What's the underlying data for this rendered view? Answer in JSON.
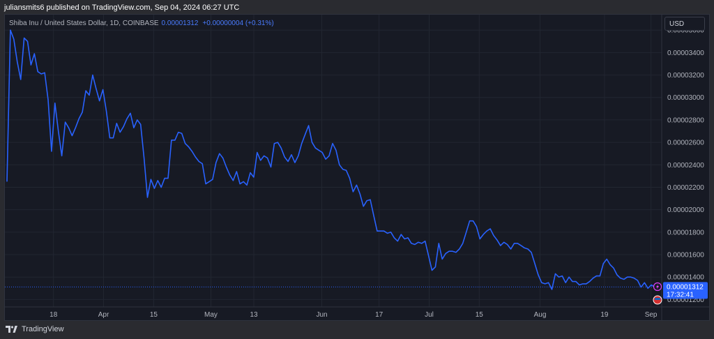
{
  "header": {
    "publisher": "juliansmits6 published on TradingView.com, Sep 04, 2024 06:27 UTC"
  },
  "legend": {
    "symbol": "Shiba Inu / United States Dollar, 1D, COINBASE",
    "price": "0.00001312",
    "change": "+0.00000004 (+0.31%)"
  },
  "currency_button": "USD",
  "price_badge": {
    "price": "0.00001312",
    "countdown": "17:32:41"
  },
  "footer": {
    "brand": "TradingView"
  },
  "colors": {
    "line": "#2962ff",
    "background": "#171a24",
    "grid": "#222631",
    "badge": "#2962ff"
  },
  "chart_data": {
    "type": "line",
    "x_start": "2024-03-05",
    "x_end": "2024-09-04",
    "x_tick_labels": [
      {
        "label": "18",
        "date": "2024-03-18"
      },
      {
        "label": "Apr",
        "date": "2024-04-01"
      },
      {
        "label": "15",
        "date": "2024-04-15"
      },
      {
        "label": "May",
        "date": "2024-05-01"
      },
      {
        "label": "13",
        "date": "2024-05-13"
      },
      {
        "label": "Jun",
        "date": "2024-06-01"
      },
      {
        "label": "17",
        "date": "2024-06-17"
      },
      {
        "label": "Jul",
        "date": "2024-07-01"
      },
      {
        "label": "15",
        "date": "2024-07-15"
      },
      {
        "label": "Aug",
        "date": "2024-08-01"
      },
      {
        "label": "19",
        "date": "2024-08-19"
      },
      {
        "label": "Sep",
        "date": "2024-09-01"
      }
    ],
    "y_ticks": [
      "0.00001200",
      "0.00001400",
      "0.00001600",
      "0.00001800",
      "0.00002000",
      "0.00002200",
      "0.00002400",
      "0.00002600",
      "0.00002800",
      "0.00003000",
      "0.00003200",
      "0.00003400",
      "0.00003600"
    ],
    "ylim": [
      1.134e-05,
      3.738e-05
    ],
    "y_unit": 1e-08,
    "values": [
      2250,
      3600,
      3520,
      3320,
      3160,
      3530,
      3500,
      3290,
      3390,
      3230,
      3210,
      3220,
      2980,
      2520,
      2950,
      2700,
      2480,
      2780,
      2730,
      2660,
      2730,
      2810,
      2870,
      3060,
      3020,
      3200,
      3080,
      2970,
      3070,
      2880,
      2640,
      2640,
      2770,
      2690,
      2740,
      2810,
      2860,
      2730,
      2800,
      2760,
      2460,
      2110,
      2270,
      2190,
      2260,
      2200,
      2280,
      2280,
      2620,
      2620,
      2690,
      2680,
      2590,
      2560,
      2520,
      2470,
      2430,
      2410,
      2230,
      2250,
      2270,
      2420,
      2500,
      2460,
      2380,
      2310,
      2260,
      2340,
      2230,
      2250,
      2220,
      2330,
      2290,
      2510,
      2440,
      2480,
      2460,
      2380,
      2590,
      2600,
      2550,
      2470,
      2430,
      2490,
      2420,
      2480,
      2590,
      2670,
      2750,
      2600,
      2550,
      2530,
      2510,
      2450,
      2480,
      2590,
      2530,
      2400,
      2360,
      2350,
      2280,
      2160,
      2220,
      2140,
      2030,
      2080,
      2090,
      1950,
      1810,
      1810,
      1810,
      1790,
      1800,
      1750,
      1720,
      1780,
      1740,
      1750,
      1700,
      1690,
      1710,
      1700,
      1720,
      1590,
      1460,
      1490,
      1700,
      1560,
      1610,
      1630,
      1630,
      1620,
      1650,
      1700,
      1800,
      1900,
      1900,
      1850,
      1740,
      1780,
      1810,
      1830,
      1770,
      1730,
      1680,
      1710,
      1690,
      1650,
      1700,
      1700,
      1680,
      1660,
      1650,
      1620,
      1520,
      1420,
      1350,
      1340,
      1350,
      1290,
      1430,
      1400,
      1410,
      1350,
      1400,
      1360,
      1360,
      1330,
      1340,
      1340,
      1360,
      1390,
      1410,
      1410,
      1520,
      1560,
      1510,
      1480,
      1420,
      1390,
      1380,
      1400,
      1400,
      1390,
      1370,
      1310,
      1350,
      1300,
      1330,
      1312
    ]
  }
}
